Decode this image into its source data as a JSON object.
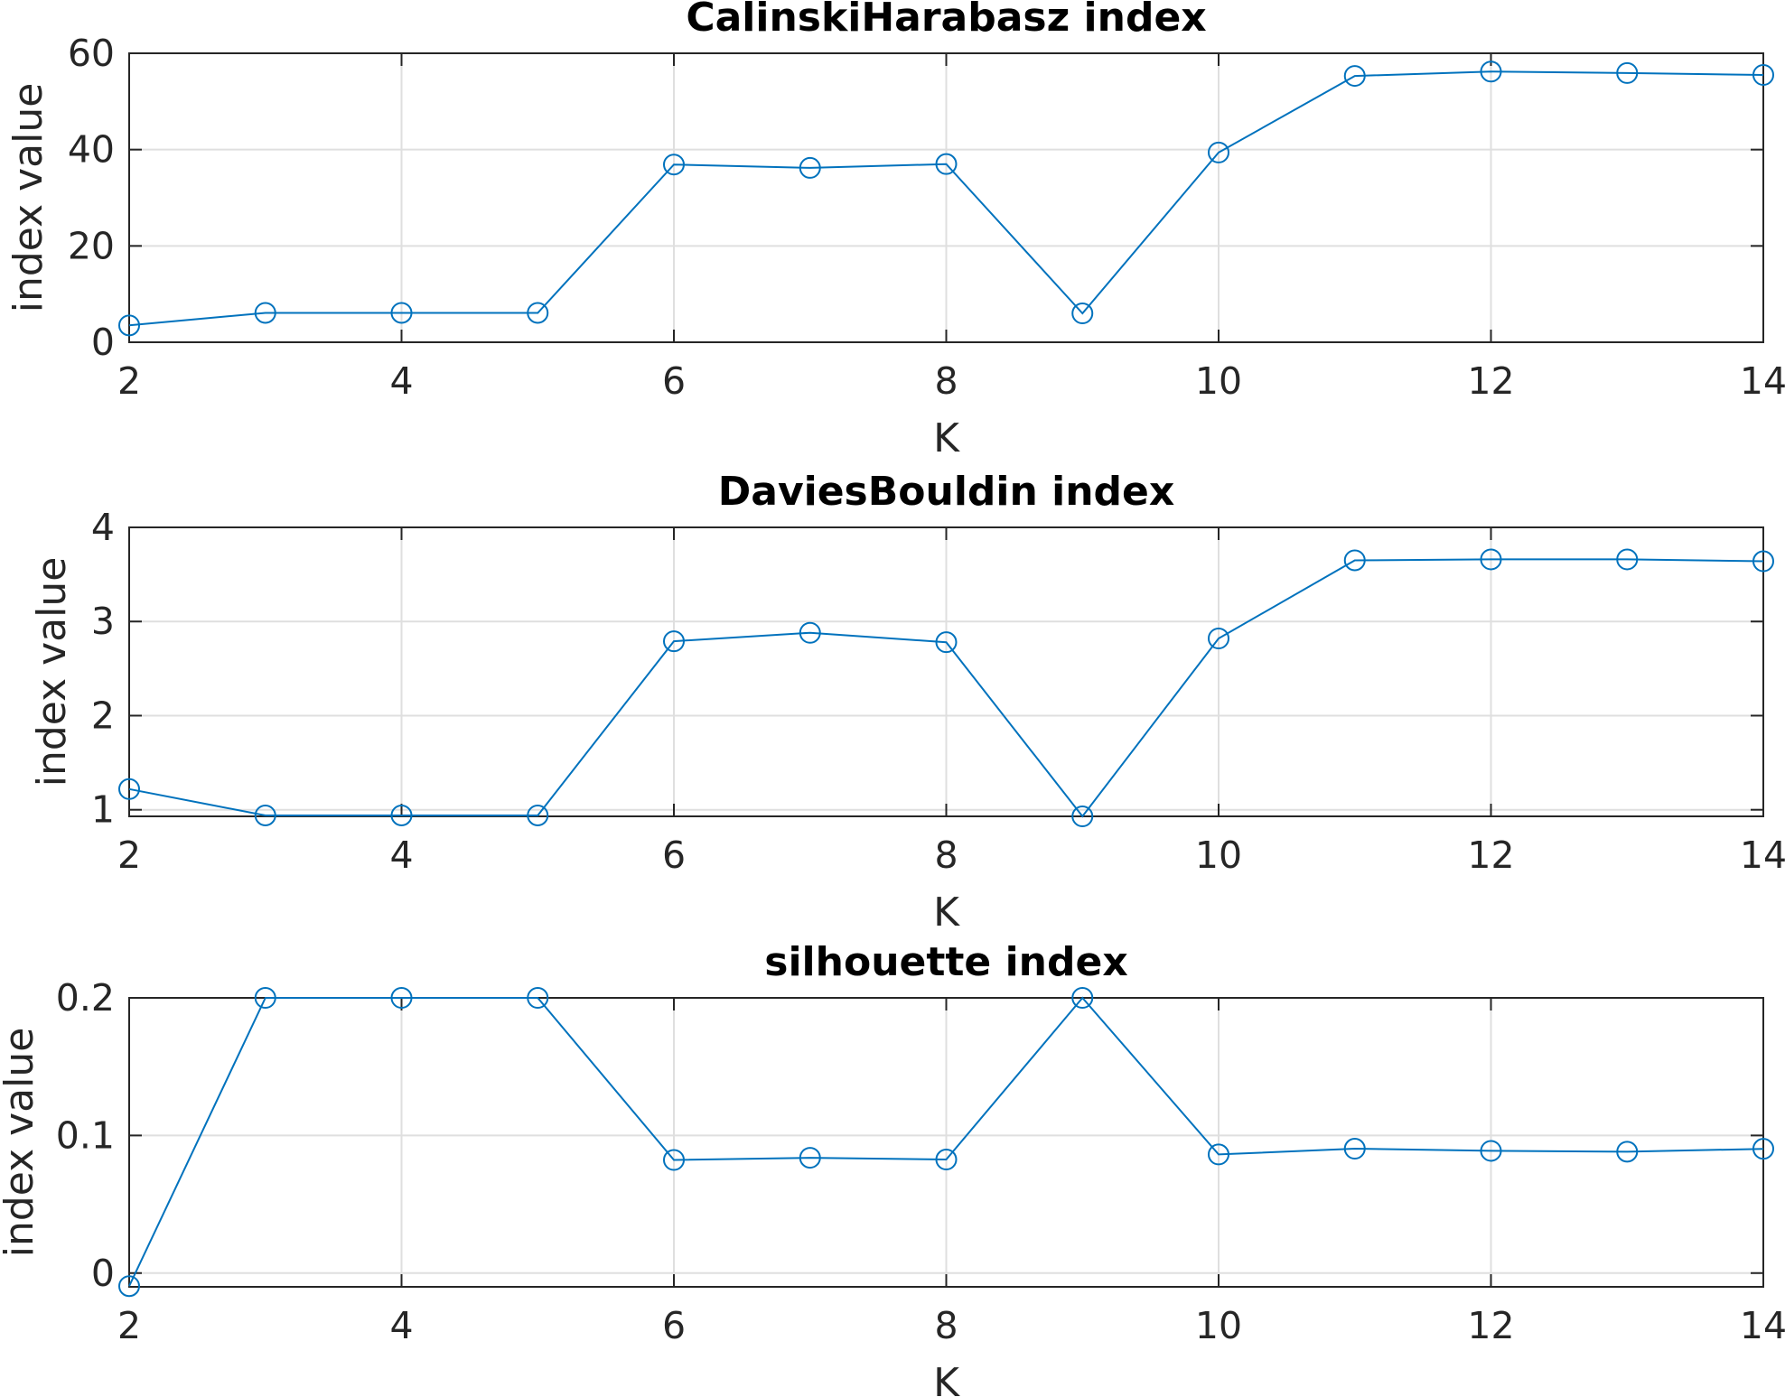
{
  "chart_data": [
    {
      "type": "line",
      "title": "CalinskiHarabasz index",
      "xlabel": "K",
      "ylabel": "index value",
      "xlim": [
        2,
        14
      ],
      "ylim": [
        0,
        60
      ],
      "xticks": [
        2,
        4,
        6,
        8,
        10,
        12,
        14
      ],
      "yticks": [
        0,
        20,
        40,
        60
      ],
      "grid": true,
      "marker": "circle",
      "color": "#0072BD",
      "x": [
        2,
        3,
        4,
        5,
        6,
        7,
        8,
        9,
        10,
        11,
        12,
        13,
        14
      ],
      "series": [
        {
          "values": [
            3.5,
            6.1,
            6.1,
            6.1,
            36.9,
            36.2,
            37.0,
            6.0,
            39.4,
            55.3,
            56.2,
            55.9,
            55.5
          ]
        }
      ]
    },
    {
      "type": "line",
      "title": "DaviesBouldin index",
      "xlabel": "K",
      "ylabel": "index value",
      "xlim": [
        2,
        14
      ],
      "ylim": [
        0.93,
        4
      ],
      "xticks": [
        2,
        4,
        6,
        8,
        10,
        12,
        14
      ],
      "yticks": [
        1,
        2,
        3,
        4
      ],
      "grid": true,
      "marker": "circle",
      "color": "#0072BD",
      "x": [
        2,
        3,
        4,
        5,
        6,
        7,
        8,
        9,
        10,
        11,
        12,
        13,
        14
      ],
      "series": [
        {
          "values": [
            1.22,
            0.94,
            0.94,
            0.94,
            2.79,
            2.88,
            2.78,
            0.93,
            2.82,
            3.65,
            3.66,
            3.66,
            3.64
          ]
        }
      ]
    },
    {
      "type": "line",
      "title": "silhouette index",
      "xlabel": "K",
      "ylabel": "index value",
      "xlim": [
        2,
        14
      ],
      "ylim": [
        -0.01,
        0.2
      ],
      "xticks": [
        2,
        4,
        6,
        8,
        10,
        12,
        14
      ],
      "yticks": [
        0,
        0.1,
        0.2
      ],
      "grid": true,
      "marker": "circle",
      "color": "#0072BD",
      "x": [
        2,
        3,
        4,
        5,
        6,
        7,
        8,
        9,
        10,
        11,
        12,
        13,
        14
      ],
      "series": [
        {
          "values": [
            -0.0095,
            0.2,
            0.2,
            0.2,
            0.0822,
            0.0838,
            0.0825,
            0.2,
            0.0862,
            0.0904,
            0.0888,
            0.0882,
            0.0903
          ]
        }
      ]
    }
  ]
}
